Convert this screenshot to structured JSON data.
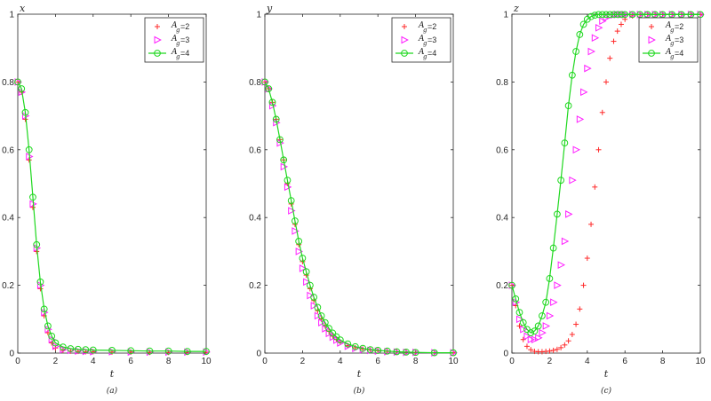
{
  "colors": {
    "s2": "#ff2a2a",
    "s3": "#ff20ff",
    "s4": "#1fd81f",
    "axis": "#262626"
  },
  "chart_data": [
    {
      "type": "scatter",
      "panel_label": "(a)",
      "ylabel": "x",
      "xlabel": "t",
      "xlim": [
        0,
        10
      ],
      "ylim": [
        0,
        1
      ],
      "xticks": [
        "0",
        "2",
        "4",
        "6",
        "8",
        "10"
      ],
      "yticks": [
        "0",
        "0.2",
        "0.4",
        "0.6",
        "0.8",
        "1"
      ],
      "legend_position": "top-right",
      "x": [
        0,
        0.2,
        0.4,
        0.6,
        0.8,
        1.0,
        1.2,
        1.4,
        1.6,
        1.8,
        2.0,
        2.4,
        2.8,
        3.2,
        3.6,
        4.0,
        5.0,
        6.0,
        7.0,
        8.0,
        9.0,
        10.0
      ],
      "series": [
        {
          "legend_label": "A",
          "legend_sub": "g",
          "legend_value": "=2",
          "marker": "plus",
          "values": [
            0.8,
            0.77,
            0.69,
            0.57,
            0.43,
            0.3,
            0.19,
            0.11,
            0.06,
            0.03,
            0.015,
            0.008,
            0.006,
            0.005,
            0.004,
            0.004,
            0.003,
            0.003,
            0.002,
            0.002,
            0.002,
            0.002
          ]
        },
        {
          "legend_label": "A",
          "legend_sub": "g",
          "legend_value": "=3",
          "marker": "triangle",
          "values": [
            0.8,
            0.77,
            0.7,
            0.58,
            0.44,
            0.31,
            0.2,
            0.12,
            0.07,
            0.04,
            0.02,
            0.01,
            0.008,
            0.006,
            0.005,
            0.004,
            0.004,
            0.003,
            0.003,
            0.003,
            0.003,
            0.003
          ]
        },
        {
          "legend_label": "A",
          "legend_sub": "g",
          "legend_value": "=4",
          "marker": "circle-line",
          "values": [
            0.8,
            0.78,
            0.71,
            0.6,
            0.46,
            0.32,
            0.21,
            0.13,
            0.08,
            0.05,
            0.03,
            0.018,
            0.013,
            0.011,
            0.01,
            0.009,
            0.008,
            0.007,
            0.006,
            0.006,
            0.005,
            0.005
          ]
        }
      ]
    },
    {
      "type": "scatter",
      "panel_label": "(b)",
      "ylabel": "y",
      "xlabel": "t",
      "xlim": [
        0,
        10
      ],
      "ylim": [
        0,
        1
      ],
      "xticks": [
        "0",
        "2",
        "4",
        "6",
        "8",
        "10"
      ],
      "yticks": [
        "0",
        "0.2",
        "0.4",
        "0.6",
        "0.8",
        "1"
      ],
      "legend_position": "top-right",
      "x": [
        0,
        0.2,
        0.4,
        0.6,
        0.8,
        1.0,
        1.2,
        1.4,
        1.6,
        1.8,
        2.0,
        2.2,
        2.4,
        2.6,
        2.8,
        3.0,
        3.2,
        3.4,
        3.6,
        3.8,
        4.0,
        4.4,
        4.8,
        5.2,
        5.6,
        6.0,
        6.5,
        7.0,
        7.5,
        8.0,
        9.0,
        10.0
      ],
      "series": [
        {
          "legend_label": "A",
          "legend_sub": "g",
          "legend_value": "=2",
          "marker": "plus",
          "values": [
            0.8,
            0.78,
            0.74,
            0.69,
            0.63,
            0.57,
            0.5,
            0.44,
            0.38,
            0.32,
            0.27,
            0.23,
            0.19,
            0.155,
            0.125,
            0.1,
            0.08,
            0.064,
            0.05,
            0.04,
            0.032,
            0.022,
            0.016,
            0.012,
            0.009,
            0.007,
            0.005,
            0.004,
            0.003,
            0.002,
            0.001,
            0.001
          ]
        },
        {
          "legend_label": "A",
          "legend_sub": "g",
          "legend_value": "=3",
          "marker": "triangle",
          "values": [
            0.8,
            0.78,
            0.73,
            0.68,
            0.62,
            0.55,
            0.49,
            0.42,
            0.36,
            0.3,
            0.25,
            0.21,
            0.17,
            0.14,
            0.11,
            0.09,
            0.072,
            0.058,
            0.047,
            0.038,
            0.03,
            0.02,
            0.014,
            0.01,
            0.008,
            0.006,
            0.004,
            0.003,
            0.002,
            0.002,
            0.001,
            0.001
          ]
        },
        {
          "legend_label": "A",
          "legend_sub": "g",
          "legend_value": "=4",
          "marker": "circle-line",
          "values": [
            0.8,
            0.78,
            0.74,
            0.69,
            0.63,
            0.57,
            0.51,
            0.45,
            0.39,
            0.33,
            0.28,
            0.24,
            0.2,
            0.165,
            0.135,
            0.11,
            0.09,
            0.073,
            0.059,
            0.048,
            0.039,
            0.027,
            0.019,
            0.014,
            0.01,
            0.008,
            0.006,
            0.004,
            0.003,
            0.002,
            0.001,
            0.001
          ]
        }
      ]
    },
    {
      "type": "scatter",
      "panel_label": "(c)",
      "ylabel": "z",
      "xlabel": "t",
      "xlim": [
        0,
        10
      ],
      "ylim": [
        0,
        1
      ],
      "xticks": [
        "0",
        "2",
        "4",
        "6",
        "8",
        "10"
      ],
      "yticks": [
        "0",
        "0.2",
        "0.4",
        "0.6",
        "0.8",
        "1"
      ],
      "legend_position": "top-right",
      "x": [
        0,
        0.2,
        0.4,
        0.6,
        0.8,
        1.0,
        1.2,
        1.4,
        1.6,
        1.8,
        2.0,
        2.2,
        2.4,
        2.6,
        2.8,
        3.0,
        3.2,
        3.4,
        3.6,
        3.8,
        4.0,
        4.2,
        4.4,
        4.6,
        4.8,
        5.0,
        5.2,
        5.4,
        5.6,
        5.8,
        6.0,
        6.4,
        6.8,
        7.2,
        7.6,
        8.0,
        8.5,
        9.0,
        9.5,
        10.0
      ],
      "series": [
        {
          "legend_label": "A",
          "legend_sub": "g",
          "legend_value": "=2",
          "marker": "plus",
          "values": [
            0.2,
            0.14,
            0.08,
            0.04,
            0.02,
            0.01,
            0.005,
            0.004,
            0.004,
            0.005,
            0.006,
            0.008,
            0.011,
            0.016,
            0.024,
            0.036,
            0.055,
            0.085,
            0.13,
            0.2,
            0.28,
            0.38,
            0.49,
            0.6,
            0.71,
            0.8,
            0.87,
            0.92,
            0.95,
            0.97,
            0.985,
            0.995,
            0.998,
            0.999,
            0.999,
            0.999,
            0.999,
            0.999,
            0.999,
            0.999
          ]
        },
        {
          "legend_label": "A",
          "legend_sub": "g",
          "legend_value": "=3",
          "marker": "triangle",
          "values": [
            0.2,
            0.15,
            0.1,
            0.07,
            0.05,
            0.04,
            0.04,
            0.045,
            0.06,
            0.08,
            0.11,
            0.15,
            0.2,
            0.26,
            0.33,
            0.41,
            0.51,
            0.6,
            0.69,
            0.77,
            0.84,
            0.89,
            0.93,
            0.96,
            0.98,
            0.99,
            0.995,
            0.998,
            0.999,
            0.999,
            0.999,
            0.999,
            0.999,
            0.999,
            0.999,
            0.999,
            0.999,
            0.999,
            0.999,
            0.999
          ]
        },
        {
          "legend_label": "A",
          "legend_sub": "g",
          "legend_value": "=4",
          "marker": "circle-line",
          "values": [
            0.2,
            0.16,
            0.12,
            0.09,
            0.07,
            0.06,
            0.065,
            0.08,
            0.11,
            0.15,
            0.22,
            0.31,
            0.41,
            0.51,
            0.62,
            0.73,
            0.82,
            0.89,
            0.94,
            0.97,
            0.985,
            0.993,
            0.997,
            0.999,
            0.999,
            0.999,
            0.999,
            0.999,
            0.999,
            0.999,
            0.999,
            0.999,
            0.999,
            0.999,
            0.999,
            0.999,
            0.999,
            0.999,
            0.999,
            0.999
          ]
        }
      ]
    }
  ]
}
